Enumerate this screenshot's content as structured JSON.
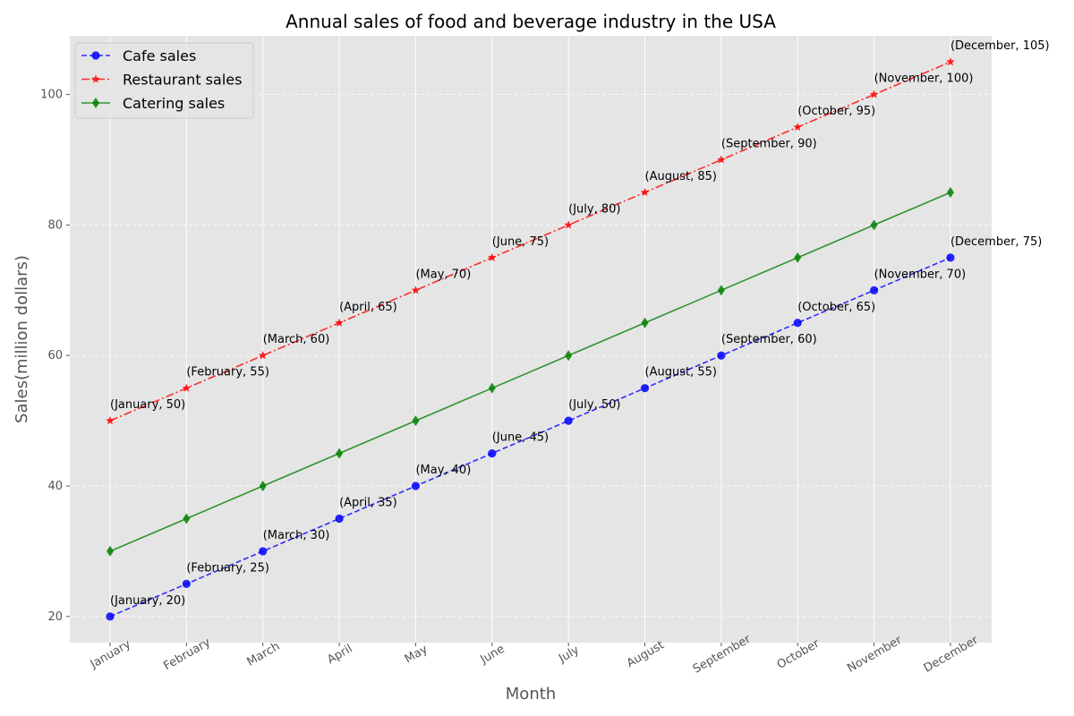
{
  "chart_data": {
    "type": "line",
    "title": "Annual sales of food and beverage industry in the USA",
    "xlabel": "Month",
    "ylabel": "Sales(million dollars)",
    "categories": [
      "January",
      "February",
      "March",
      "April",
      "May",
      "June",
      "July",
      "August",
      "September",
      "October",
      "November",
      "December"
    ],
    "ylim": [
      16,
      109
    ],
    "yticks": [
      20,
      40,
      60,
      80,
      100
    ],
    "grid": true,
    "legend_position": "top-left",
    "series": [
      {
        "name": "Cafe sales",
        "values": [
          20,
          25,
          30,
          35,
          40,
          45,
          50,
          55,
          60,
          65,
          70,
          75
        ],
        "color": "#0000ff",
        "line_style": "dashed",
        "marker": "circle",
        "annotated": true
      },
      {
        "name": "Restaurant sales",
        "values": [
          50,
          55,
          60,
          65,
          70,
          75,
          80,
          85,
          90,
          95,
          100,
          105
        ],
        "color": "#ff0000",
        "line_style": "dashdot",
        "marker": "star",
        "annotated": true
      },
      {
        "name": "Catering sales",
        "values": [
          30,
          35,
          40,
          45,
          50,
          55,
          60,
          65,
          70,
          75,
          80,
          85
        ],
        "color": "#008000",
        "line_style": "solid",
        "marker": "diamond",
        "annotated": false
      }
    ],
    "colors": {
      "plot_background": "#e5e5e5",
      "grid": "#ffffff"
    }
  }
}
